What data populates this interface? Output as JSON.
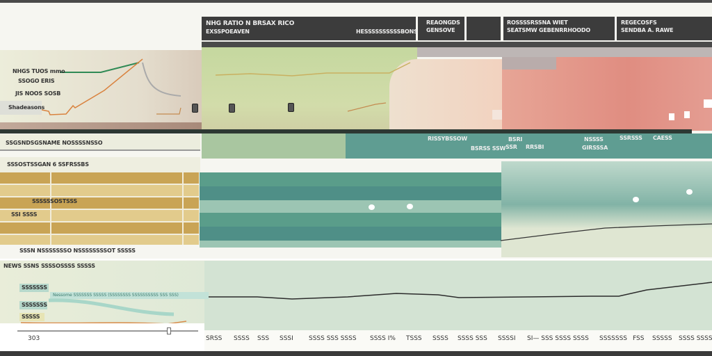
{
  "header": {
    "main_title": "NHG RATIO N BRSAX RICO",
    "main_subtitle": "EXSSPOEAVEN",
    "main_right": "HESSSSSSSSSSBONS",
    "panel2_title": "REAONGDS",
    "panel2_sub": "GENSOVE",
    "panel4_title": "ROSSSSRSSNA WIET",
    "panel4_sub": "SEATSMW GEBENRRHOODO",
    "panel5_title": "REGECOSFS",
    "panel5_sub": "SENDBA A. RAWE"
  },
  "top_chart": {
    "labels": [
      "NHGS TUOS mmo",
      "SSOGO ERIS",
      "JIS NOOS SOSB",
      "Shadeasons"
    ]
  },
  "section_titles": [
    "SSGSNDSGSNAME NOSSSSNSSO",
    "SSSOSTSSGAN 6 SSFRSSBS",
    "NEWS SSNS SSSSOSSSS SSSSS"
  ],
  "teal_labels": [
    "RISSYBSSOW",
    "BSRSS SSW",
    "BSRI",
    "SSR",
    "RRSBI",
    "NSSSS",
    "GIRSSSA",
    "SSRSSS",
    "CAESS"
  ],
  "gold_rows": {
    "labels": [
      "SSSSSSOSTSSS",
      "SSI SSSS"
    ],
    "footer": "SSSN NSSSSSSSO NSSSSSSSSOT SSSSS"
  },
  "bottom_chart": {
    "legend": [
      "SSSSSSS",
      "SSSSSSS",
      "SSSSS"
    ],
    "note": "Nessome SSSSSSS SSSSS (SSSSSSSS SSSSSSSSSS SSS SSS)",
    "left_tick": "303",
    "x_ticks": [
      "SRSS",
      "SSSS",
      "SSS",
      "SSSI",
      "SSSS SSS SSSS",
      "SSSS I%",
      "TSSS",
      "SSSS",
      "SSSS SSS",
      "SSSSI",
      "SI— SSS SSSS SSSS",
      "SSSSSSS",
      "FSS",
      "SSSSS",
      "SSSS SSSS"
    ]
  },
  "colors": {
    "dark": "#3c3c3c",
    "green": "#c6d8a2",
    "peach": "#f0d6c4",
    "salmon": "#e29587",
    "teal": "#4f9188",
    "gold": "#c9a455",
    "mint": "#d3e3d3"
  }
}
